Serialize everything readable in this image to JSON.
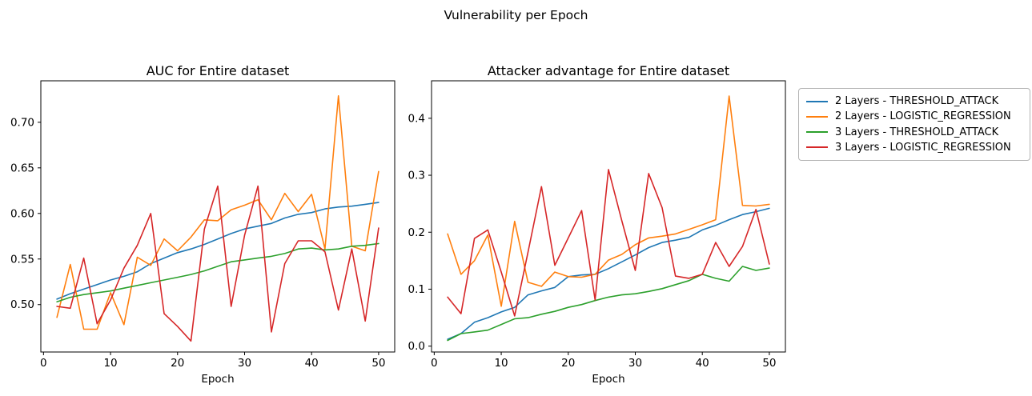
{
  "figure": {
    "title": "Vulnerability per Epoch"
  },
  "legend": {
    "entries": [
      {
        "label": "2 Layers - THRESHOLD_ATTACK",
        "color": "#1f77b4"
      },
      {
        "label": "2 Layers - LOGISTIC_REGRESSION",
        "color": "#ff7f0e"
      },
      {
        "label": "3 Layers - THRESHOLD_ATTACK",
        "color": "#2ca02c"
      },
      {
        "label": "3 Layers - LOGISTIC_REGRESSION",
        "color": "#d62728"
      }
    ]
  },
  "chart_data": [
    {
      "type": "line",
      "title": "AUC for Entire dataset",
      "xlabel": "Epoch",
      "ylabel": "",
      "grid": false,
      "legend_position": "outside-right-shared",
      "x": [
        2,
        4,
        6,
        8,
        10,
        12,
        14,
        16,
        18,
        20,
        22,
        24,
        26,
        28,
        30,
        32,
        34,
        36,
        38,
        40,
        42,
        44,
        46,
        48,
        50
      ],
      "xlim": [
        -0.4,
        52.4
      ],
      "ylim": [
        0.448,
        0.7455
      ],
      "xticks": [
        0,
        10,
        20,
        30,
        40,
        50
      ],
      "xtick_labels": [
        "0",
        "10",
        "20",
        "30",
        "40",
        "50"
      ],
      "yticks": [
        0.5,
        0.55,
        0.6,
        0.65,
        0.7
      ],
      "ytick_labels": [
        "0.50",
        "0.55",
        "0.60",
        "0.65",
        "0.70"
      ],
      "series": [
        {
          "name": "2 Layers - THRESHOLD_ATTACK",
          "color": "#1f77b4",
          "values": [
            0.506,
            0.512,
            0.517,
            0.522,
            0.527,
            0.531,
            0.536,
            0.545,
            0.551,
            0.557,
            0.561,
            0.566,
            0.572,
            0.578,
            0.583,
            0.586,
            0.589,
            0.595,
            0.599,
            0.601,
            0.605,
            0.607,
            0.608,
            0.61,
            0.612
          ]
        },
        {
          "name": "2 Layers - LOGISTIC_REGRESSION",
          "color": "#ff7f0e",
          "values": [
            0.486,
            0.544,
            0.473,
            0.473,
            0.513,
            0.478,
            0.552,
            0.543,
            0.572,
            0.559,
            0.574,
            0.593,
            0.592,
            0.604,
            0.609,
            0.615,
            0.593,
            0.622,
            0.602,
            0.621,
            0.561,
            0.729,
            0.564,
            0.559,
            0.646
          ]
        },
        {
          "name": "3 Layers - THRESHOLD_ATTACK",
          "color": "#2ca02c",
          "values": [
            0.503,
            0.508,
            0.511,
            0.513,
            0.515,
            0.518,
            0.521,
            0.524,
            0.527,
            0.53,
            0.533,
            0.537,
            0.542,
            0.547,
            0.549,
            0.551,
            0.553,
            0.556,
            0.561,
            0.562,
            0.56,
            0.561,
            0.564,
            0.565,
            0.567
          ]
        },
        {
          "name": "3 Layers - LOGISTIC_REGRESSION",
          "color": "#d62728",
          "values": [
            0.498,
            0.496,
            0.551,
            0.479,
            0.505,
            0.54,
            0.565,
            0.6,
            0.49,
            0.476,
            0.46,
            0.583,
            0.63,
            0.498,
            0.576,
            0.63,
            0.47,
            0.545,
            0.57,
            0.57,
            0.558,
            0.494,
            0.561,
            0.482,
            0.584
          ]
        }
      ]
    },
    {
      "type": "line",
      "title": "Attacker advantage for Entire dataset",
      "xlabel": "Epoch",
      "ylabel": "",
      "grid": false,
      "legend_position": "outside-right-shared",
      "x": [
        2,
        4,
        6,
        8,
        10,
        12,
        14,
        16,
        18,
        20,
        22,
        24,
        26,
        28,
        30,
        32,
        34,
        36,
        38,
        40,
        42,
        44,
        46,
        48,
        50
      ],
      "xlim": [
        -0.4,
        52.4
      ],
      "ylim": [
        -0.0103,
        0.4658
      ],
      "xticks": [
        0,
        10,
        20,
        30,
        40,
        50
      ],
      "xtick_labels": [
        "0",
        "10",
        "20",
        "30",
        "40",
        "50"
      ],
      "yticks": [
        0.0,
        0.1,
        0.2,
        0.3,
        0.4
      ],
      "ytick_labels": [
        "0.0",
        "0.1",
        "0.2",
        "0.3",
        "0.4"
      ],
      "series": [
        {
          "name": "2 Layers - THRESHOLD_ATTACK",
          "color": "#1f77b4",
          "values": [
            0.012,
            0.022,
            0.042,
            0.05,
            0.06,
            0.068,
            0.09,
            0.097,
            0.103,
            0.122,
            0.125,
            0.126,
            0.136,
            0.148,
            0.16,
            0.173,
            0.182,
            0.186,
            0.191,
            0.204,
            0.212,
            0.222,
            0.231,
            0.236,
            0.242
          ]
        },
        {
          "name": "2 Layers - LOGISTIC_REGRESSION",
          "color": "#ff7f0e",
          "values": [
            0.197,
            0.126,
            0.15,
            0.195,
            0.07,
            0.219,
            0.112,
            0.105,
            0.13,
            0.122,
            0.121,
            0.126,
            0.151,
            0.161,
            0.178,
            0.19,
            0.193,
            0.197,
            0.205,
            0.213,
            0.222,
            0.439,
            0.247,
            0.246,
            0.249
          ]
        },
        {
          "name": "3 Layers - THRESHOLD_ATTACK",
          "color": "#2ca02c",
          "values": [
            0.01,
            0.022,
            0.025,
            0.028,
            0.038,
            0.048,
            0.05,
            0.056,
            0.061,
            0.068,
            0.073,
            0.08,
            0.086,
            0.09,
            0.092,
            0.096,
            0.101,
            0.108,
            0.115,
            0.126,
            0.119,
            0.114,
            0.14,
            0.133,
            0.137
          ]
        },
        {
          "name": "3 Layers - LOGISTIC_REGRESSION",
          "color": "#d62728",
          "values": [
            0.086,
            0.057,
            0.189,
            0.204,
            0.13,
            0.053,
            0.165,
            0.28,
            0.142,
            0.19,
            0.238,
            0.081,
            0.31,
            0.22,
            0.133,
            0.303,
            0.243,
            0.123,
            0.119,
            0.126,
            0.182,
            0.14,
            0.175,
            0.24,
            0.144
          ]
        }
      ]
    }
  ]
}
